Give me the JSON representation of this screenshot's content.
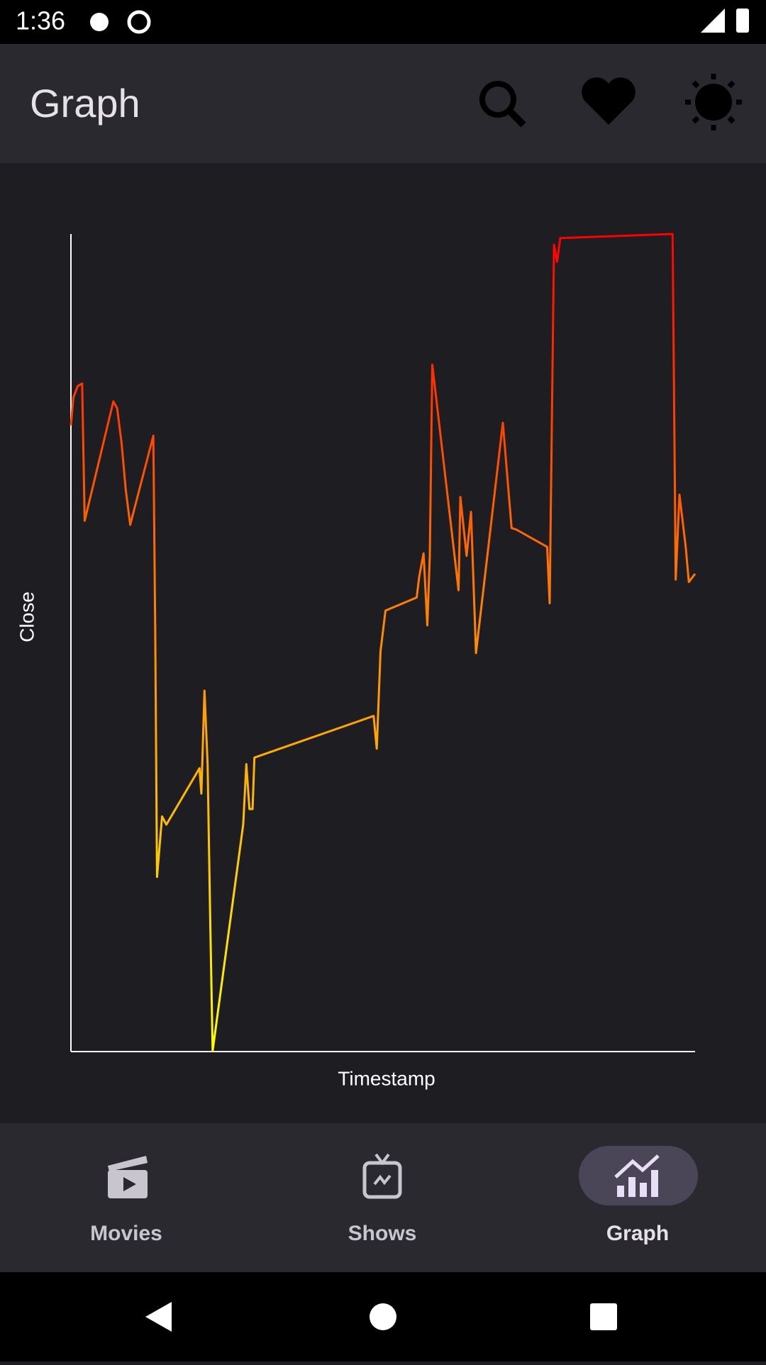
{
  "status_bar": {
    "time": "1:36"
  },
  "app_bar": {
    "title": "Graph"
  },
  "chart_data": {
    "type": "line",
    "ylabel": "Close",
    "xlabel": "Timestamp",
    "colors": [
      "#ffff00",
      "#ff8c00",
      "#ff0000"
    ],
    "xlim": [
      0,
      100
    ],
    "ylim": [
      0,
      100
    ],
    "x": [
      0,
      0.4,
      1.1,
      1.8,
      2.2,
      6.8,
      7.4,
      8.1,
      8.8,
      9.5,
      13.2,
      13.5,
      13.8,
      14.6,
      15.3,
      20.6,
      20.9,
      21.4,
      21.9,
      22.3,
      22.7,
      27.6,
      28.1,
      28.6,
      29.1,
      29.4,
      48.5,
      49,
      49.6,
      50.4,
      55.4,
      55.8,
      56.5,
      57.1,
      57.5,
      57.9,
      62.1,
      62.4,
      63.4,
      64.1,
      64.9,
      69.2,
      70.6,
      71.4,
      76.3,
      76.7,
      77.4,
      77.9,
      78.4,
      96.4,
      96.9,
      97.5,
      98.5,
      99,
      100
    ],
    "values": [
      76.6,
      80,
      81.4,
      81.7,
      64.9,
      79.5,
      78.7,
      74.5,
      68.6,
      64.4,
      75.3,
      52.1,
      21.3,
      28.7,
      27.7,
      34.6,
      31.5,
      44.1,
      35.1,
      17,
      0,
      27.7,
      35.1,
      29.6,
      29.6,
      35.9,
      41,
      37,
      48.9,
      53.9,
      55.5,
      58,
      60.9,
      52.1,
      60.6,
      84,
      56.4,
      67.8,
      60.6,
      66,
      48.7,
      76.9,
      64,
      63.8,
      61.7,
      54.8,
      98.7,
      96.6,
      99.5,
      100,
      57.7,
      68.1,
      61.7,
      57.4,
      58.4
    ]
  },
  "bottom_nav": {
    "items": [
      "Movies",
      "Shows",
      "Graph"
    ]
  }
}
